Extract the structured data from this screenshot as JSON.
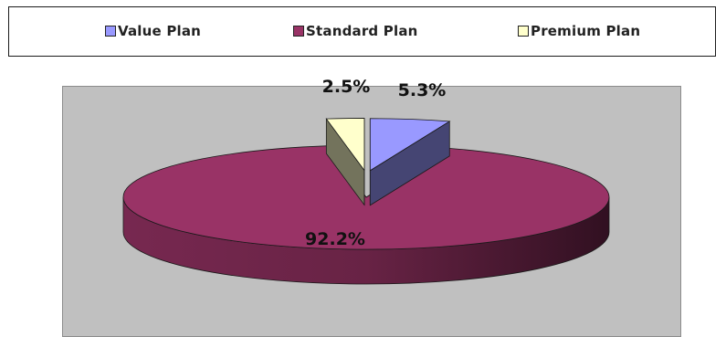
{
  "chart_data": {
    "type": "pie",
    "style": "3d-exploded",
    "categories": [
      "Value Plan",
      "Standard Plan",
      "Premium Plan"
    ],
    "values": [
      5.3,
      92.2,
      2.5
    ],
    "data_labels": [
      "5.3%",
      "92.2%",
      "2.5%"
    ],
    "title": "",
    "legend_position": "top",
    "colors": {
      "Value Plan": "#9999ff",
      "Standard Plan": "#993366",
      "Premium Plan": "#ffffcc"
    }
  },
  "legend": {
    "items": [
      {
        "label": "Value Plan",
        "color": "#9999ff"
      },
      {
        "label": "Standard Plan",
        "color": "#993366"
      },
      {
        "label": "Premium Plan",
        "color": "#ffffcc"
      }
    ]
  },
  "plot_background": "#c0c0c0"
}
